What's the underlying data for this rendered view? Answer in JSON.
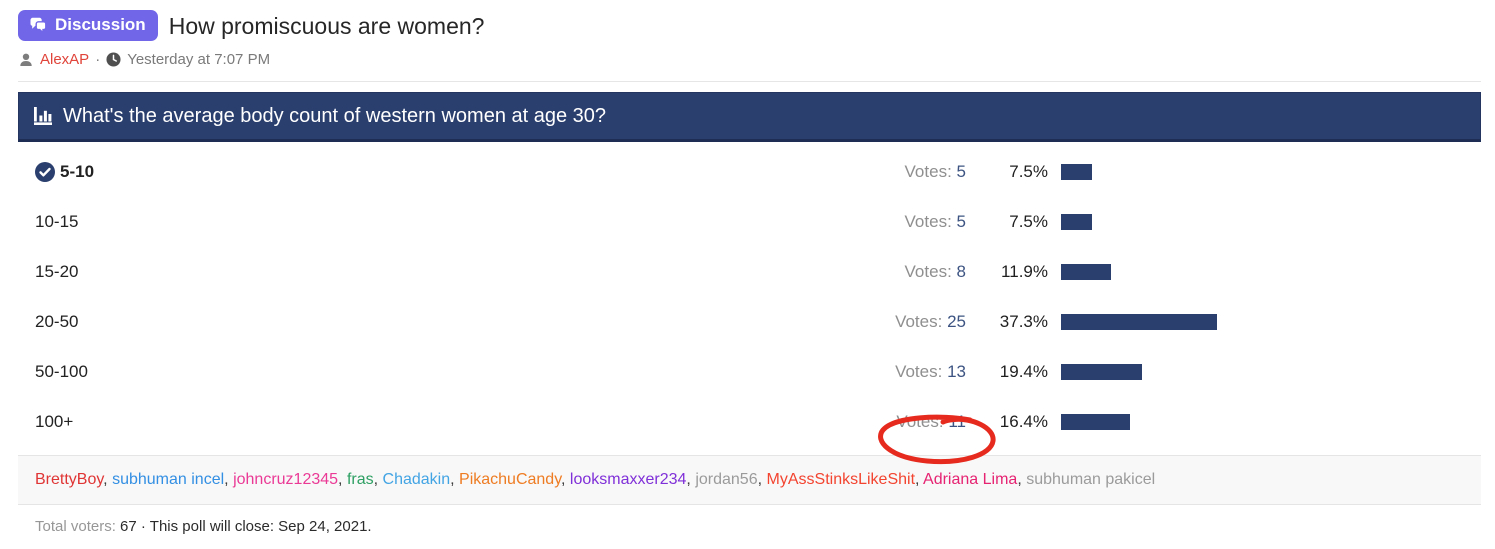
{
  "thread": {
    "badge": "Discussion",
    "title": "How promiscuous are women?",
    "author": "AlexAP",
    "separator": "·",
    "timestamp": "Yesterday at 7:07 PM"
  },
  "poll": {
    "question": "What's the average body count of western women at age 30?",
    "votes_label": "Votes:",
    "options": [
      {
        "label": "5-10",
        "votes": 5,
        "pct": "7.5%",
        "pct_value": 7.5,
        "checked": true,
        "annotated": false
      },
      {
        "label": "10-15",
        "votes": 5,
        "pct": "7.5%",
        "pct_value": 7.5,
        "checked": false,
        "annotated": false
      },
      {
        "label": "15-20",
        "votes": 8,
        "pct": "11.9%",
        "pct_value": 11.9,
        "checked": false,
        "annotated": false
      },
      {
        "label": "20-50",
        "votes": 25,
        "pct": "37.3%",
        "pct_value": 37.3,
        "checked": false,
        "annotated": false
      },
      {
        "label": "50-100",
        "votes": 13,
        "pct": "19.4%",
        "pct_value": 19.4,
        "checked": false,
        "annotated": false
      },
      {
        "label": "100+",
        "votes": 11,
        "pct": "16.4%",
        "pct_value": 16.4,
        "checked": false,
        "annotated": true
      }
    ],
    "voters_separator": ",",
    "voters": [
      {
        "name": "BrettyBoy",
        "color": "#e03535"
      },
      {
        "name": "subhuman incel",
        "color": "#338fe3"
      },
      {
        "name": "johncruz12345",
        "color": "#ea3a96"
      },
      {
        "name": "fras",
        "color": "#2d9f62"
      },
      {
        "name": "Chadakin",
        "color": "#43a4e4"
      },
      {
        "name": "PikachuCandy",
        "color": "#ee7c23"
      },
      {
        "name": "looksmaxxer234",
        "color": "#8030d8"
      },
      {
        "name": "jordan56",
        "color": "#9b9b9b"
      },
      {
        "name": "MyAssStinksLikeShit",
        "color": "#f34430"
      },
      {
        "name": "Adriana Lima",
        "color": "#e62372"
      },
      {
        "name": "subhuman pakicel",
        "color": "#9b9b9b"
      }
    ],
    "total_voters_label": "Total voters:",
    "total_voters": "67",
    "close_text": "· This poll will close: Sep 24, 2021."
  },
  "colors": {
    "badge_bg": "#7166e8",
    "poll_header_bg": "#2b3f6e",
    "bar": "#2b3f6e",
    "author": "#e0443a",
    "annotation_red": "#e62b1e"
  },
  "chart_data": {
    "type": "bar",
    "title": "What's the average body count of western women at age 30?",
    "categories": [
      "5-10",
      "10-15",
      "15-20",
      "20-50",
      "50-100",
      "100+"
    ],
    "values": [
      5,
      5,
      8,
      25,
      13,
      11
    ],
    "percentages": [
      7.5,
      7.5,
      11.9,
      37.3,
      19.4,
      16.4
    ],
    "total_voters": 67
  }
}
